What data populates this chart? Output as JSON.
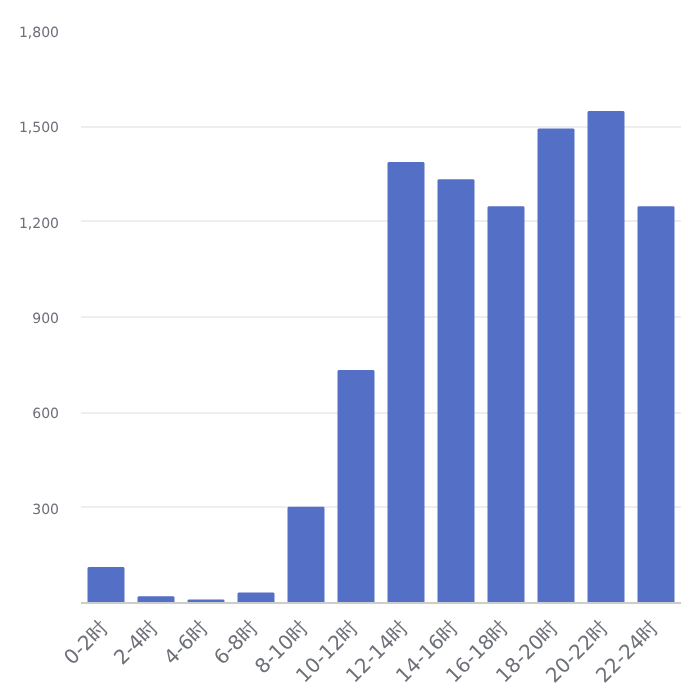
{
  "chart_data": {
    "type": "bar",
    "categories": [
      "0-2时",
      "2-4时",
      "4-6时",
      "6-8时",
      "8-10时",
      "10-12时",
      "12-14时",
      "14-16时",
      "16-18时",
      "18-20时",
      "20-22时",
      "22-24时"
    ],
    "values": [
      110,
      18,
      8,
      30,
      300,
      730,
      1385,
      1330,
      1245,
      1490,
      1545,
      1245
    ],
    "color": "#5470c6",
    "ylim": [
      0,
      1800
    ],
    "yticks": [
      {
        "value": 300,
        "label": "300"
      },
      {
        "value": 600,
        "label": "600"
      },
      {
        "value": 900,
        "label": "900"
      },
      {
        "value": 1200,
        "label": "1,200"
      },
      {
        "value": 1500,
        "label": "1,500"
      },
      {
        "value": 1800,
        "label": "1,800"
      }
    ],
    "grid": "y"
  }
}
